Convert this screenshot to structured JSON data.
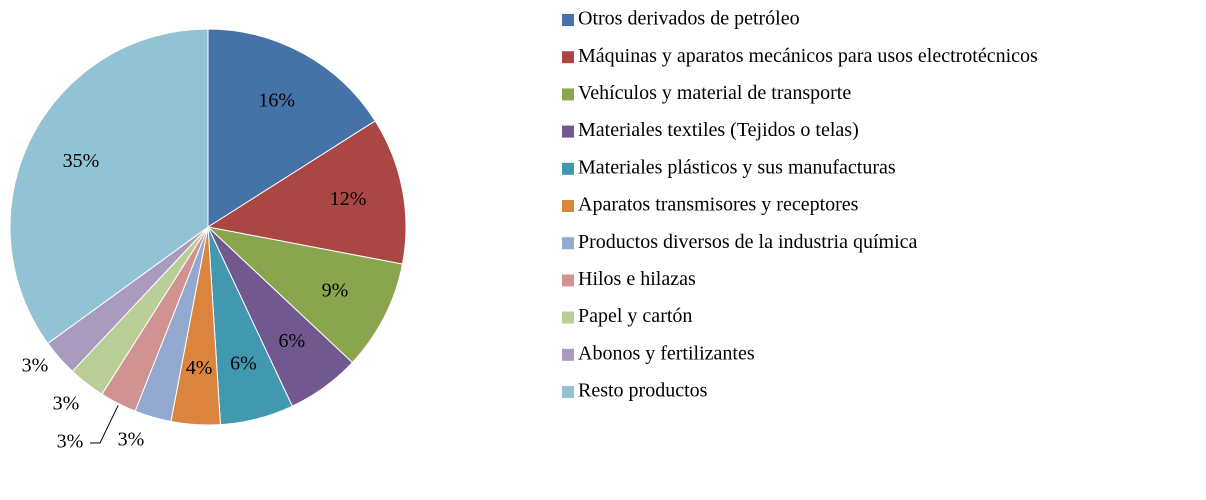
{
  "chart_data": {
    "type": "pie",
    "categories": [
      "Otros derivados de petróleo",
      "Máquinas y aparatos mecánicos para usos electrotécnicos",
      "Vehículos y material de transporte",
      "Materiales textiles (Tejidos o telas)",
      "Materiales plásticos y sus manufacturas",
      "Aparatos transmisores y receptores",
      "Productos diversos de la industria química",
      "Hilos e hilazas",
      "Papel y cartón",
      "Abonos y fertilizantes",
      "Resto productos"
    ],
    "values": [
      16,
      12,
      9,
      6,
      6,
      4,
      3,
      3,
      3,
      3,
      35
    ],
    "value_labels": [
      "16%",
      "12%",
      "9%",
      "6%",
      "6%",
      "4%",
      "3%",
      "3%",
      "3%",
      "3%",
      "35%"
    ],
    "colors": [
      "#4572A7",
      "#AA4643",
      "#89A54E",
      "#71588F",
      "#4198AF",
      "#DB843D",
      "#93A9CF",
      "#D19392",
      "#B9CD96",
      "#A99BBD",
      "#92C3D4"
    ],
    "legend": "right"
  }
}
